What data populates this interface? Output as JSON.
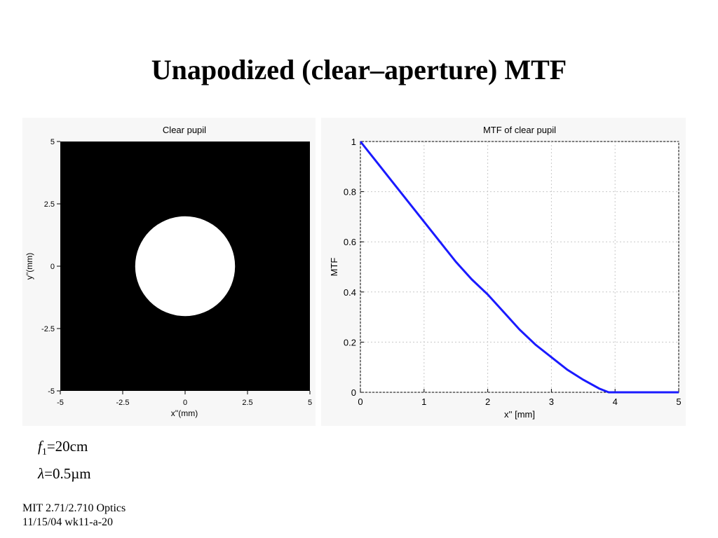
{
  "slide": {
    "title": "Unapodized (clear–aperture) MTF",
    "params": {
      "focal_symbol": "f",
      "focal_sub": "1",
      "focal_value": "=20cm",
      "wavelength_symbol": "λ",
      "wavelength_value": "=0.5µm"
    },
    "footer": {
      "line1": "MIT 2.71/2.710 Optics",
      "line2": "11/15/04 wk11-a-20"
    }
  },
  "chart_data": [
    {
      "type": "heatmap",
      "title": "Clear pupil",
      "xlabel": "x''(mm)",
      "ylabel": "y''(mm)",
      "xlim": [
        -5,
        5
      ],
      "ylim": [
        -5,
        5
      ],
      "xticks": [
        "-5",
        "-2.5",
        "0",
        "2.5",
        "5"
      ],
      "yticks": [
        "5",
        "2.5",
        "0",
        "-2.5",
        "-5"
      ],
      "pupil_radius": 2,
      "background_color": "#000000",
      "pupil_color": "#ffffff"
    },
    {
      "type": "line",
      "title": "MTF of clear pupil",
      "xlabel": "x'' [mm]",
      "ylabel": "MTF",
      "xlim": [
        0,
        5
      ],
      "ylim": [
        0,
        1
      ],
      "xticks": [
        "0",
        "1",
        "2",
        "3",
        "4",
        "5"
      ],
      "yticks": [
        "0",
        "0.2",
        "0.4",
        "0.6",
        "0.8",
        "1"
      ],
      "grid": true,
      "line_color": "#1a1aff",
      "series": [
        {
          "x": [
            0,
            0.25,
            0.5,
            0.75,
            1,
            1.25,
            1.5,
            1.75,
            2,
            2.25,
            2.5,
            2.75,
            3,
            3.25,
            3.5,
            3.75,
            3.9,
            4,
            4.5,
            5
          ],
          "y": [
            1,
            0.92,
            0.84,
            0.76,
            0.68,
            0.6,
            0.52,
            0.45,
            0.39,
            0.32,
            0.25,
            0.19,
            0.14,
            0.09,
            0.05,
            0.015,
            0,
            0,
            0,
            0
          ]
        }
      ]
    }
  ]
}
